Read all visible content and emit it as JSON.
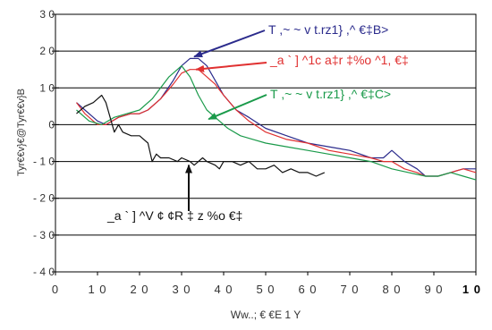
{
  "chart_data": {
    "type": "line",
    "xlabel": "Ww..; € €E 1 Y",
    "ylabel": "Tyr€€v}€@Tyr€€v}B",
    "xlim": [
      0,
      100
    ],
    "ylim": [
      -40,
      30
    ],
    "x_ticks": [
      {
        "v": 0,
        "label": "0"
      },
      {
        "v": 10,
        "label": "1 0"
      },
      {
        "v": 20,
        "label": "2 0"
      },
      {
        "v": 30,
        "label": "3 0"
      },
      {
        "v": 40,
        "label": "4 0"
      },
      {
        "v": 50,
        "label": "5 0"
      },
      {
        "v": 60,
        "label": "6 0"
      },
      {
        "v": 70,
        "label": "7 0"
      },
      {
        "v": 80,
        "label": "8 0"
      },
      {
        "v": 90,
        "label": "9 0"
      },
      {
        "v": 100,
        "label": "1 0"
      }
    ],
    "y_ticks": [
      {
        "v": 30,
        "label": "3 0"
      },
      {
        "v": 20,
        "label": "2 0"
      },
      {
        "v": 10,
        "label": "1 0"
      },
      {
        "v": 0,
        "label": "0"
      },
      {
        "v": -10,
        "label": "- 1 0"
      },
      {
        "v": -20,
        "label": "- 2 0"
      },
      {
        "v": -30,
        "label": "- 3 0"
      },
      {
        "v": -40,
        "label": "- 4 0"
      }
    ],
    "grid": "horizontal",
    "series": [
      {
        "name": "T ,~ ~ v t.rz1} ,^ €‡B>",
        "color": "#2b2b8c",
        "x": [
          5,
          7,
          10,
          12,
          15,
          18,
          20,
          22,
          25,
          28,
          30,
          32,
          34,
          36,
          38,
          40,
          43,
          46,
          50,
          55,
          60,
          65,
          70,
          75,
          78,
          80,
          83,
          86,
          88,
          91,
          94,
          97,
          100
        ],
        "y": [
          6,
          4,
          1,
          0,
          2,
          3,
          3,
          4,
          7,
          12,
          16,
          18,
          18,
          16,
          12,
          8,
          4,
          2,
          -1,
          -3,
          -5,
          -6,
          -7,
          -9,
          -9,
          -7,
          -10,
          -12,
          -14,
          -14,
          -13,
          -12,
          -12
        ]
      },
      {
        "name": "_a ` ] ^1c a‡r ‡%o ^1, €‡",
        "color": "#e03030",
        "x": [
          5,
          7,
          10,
          12,
          15,
          18,
          20,
          22,
          25,
          28,
          30,
          32,
          34,
          36,
          38,
          40,
          43,
          46,
          50,
          55,
          60,
          65,
          70,
          75,
          78,
          80,
          83,
          86,
          88,
          91,
          94,
          97,
          100
        ],
        "y": [
          6,
          3,
          0,
          0,
          2,
          3,
          3,
          4,
          7,
          11,
          14,
          15,
          15,
          13,
          11,
          8,
          4,
          1,
          -2,
          -4,
          -5,
          -7,
          -8,
          -9,
          -10,
          -10,
          -12,
          -13,
          -14,
          -14,
          -13,
          -12,
          -13
        ]
      },
      {
        "name": "T ,~ ~ v t.rz1} ,^ €‡C>",
        "color": "#1a9a4a",
        "x": [
          5,
          8,
          11,
          14,
          17,
          20,
          23,
          25,
          27,
          29,
          30,
          32,
          34,
          36,
          38,
          41,
          44,
          47,
          50,
          55,
          60,
          65,
          70,
          75,
          80,
          84,
          88,
          91,
          94,
          97,
          100
        ],
        "y": [
          4,
          1,
          0,
          2,
          3,
          4,
          7,
          10,
          13,
          15,
          16,
          13,
          8,
          4,
          2,
          -1,
          -3,
          -4,
          -5,
          -6,
          -7,
          -8,
          -9,
          -10,
          -12,
          -13,
          -14,
          -14,
          -13,
          -14,
          -15
        ]
      },
      {
        "name": "_a ` ] ^V ¢ ¢R ‡ z %o €‡",
        "color": "#111111",
        "x": [
          5,
          7,
          9,
          10,
          11,
          12,
          13,
          14,
          15,
          16,
          18,
          20,
          22,
          23,
          24,
          25,
          27,
          29,
          30,
          32,
          33,
          34,
          35,
          36,
          38,
          39,
          40,
          42,
          44,
          46,
          48,
          50,
          52,
          54,
          56,
          58,
          60,
          62,
          64
        ],
        "y": [
          3,
          5,
          6,
          7,
          8,
          6,
          2,
          -2,
          0,
          -2,
          -3,
          -3,
          -5,
          -10,
          -8,
          -9,
          -9,
          -10,
          -9,
          -10,
          -11,
          -10,
          -9,
          -10,
          -11,
          -12,
          -10,
          -10,
          -11,
          -10,
          -12,
          -12,
          -11,
          -13,
          -12,
          -13,
          -13,
          -14,
          -13
        ]
      }
    ],
    "annotations": [
      {
        "text": "T ,~ ~ v t.rz1} ,^ €‡B>",
        "color": "#2b2b8c",
        "series": 0
      },
      {
        "text": "_a ` ] ^1c a‡r ‡%o ^1, €‡",
        "color": "#e03030",
        "series": 1
      },
      {
        "text": "T ,~ ~ v t.rz1} ,^ €‡C>",
        "color": "#1a9a4a",
        "series": 2
      },
      {
        "text": "_a ` ] ^V ¢ ¢R ‡ z %o €‡",
        "color": "#111111",
        "series": 3
      }
    ]
  }
}
